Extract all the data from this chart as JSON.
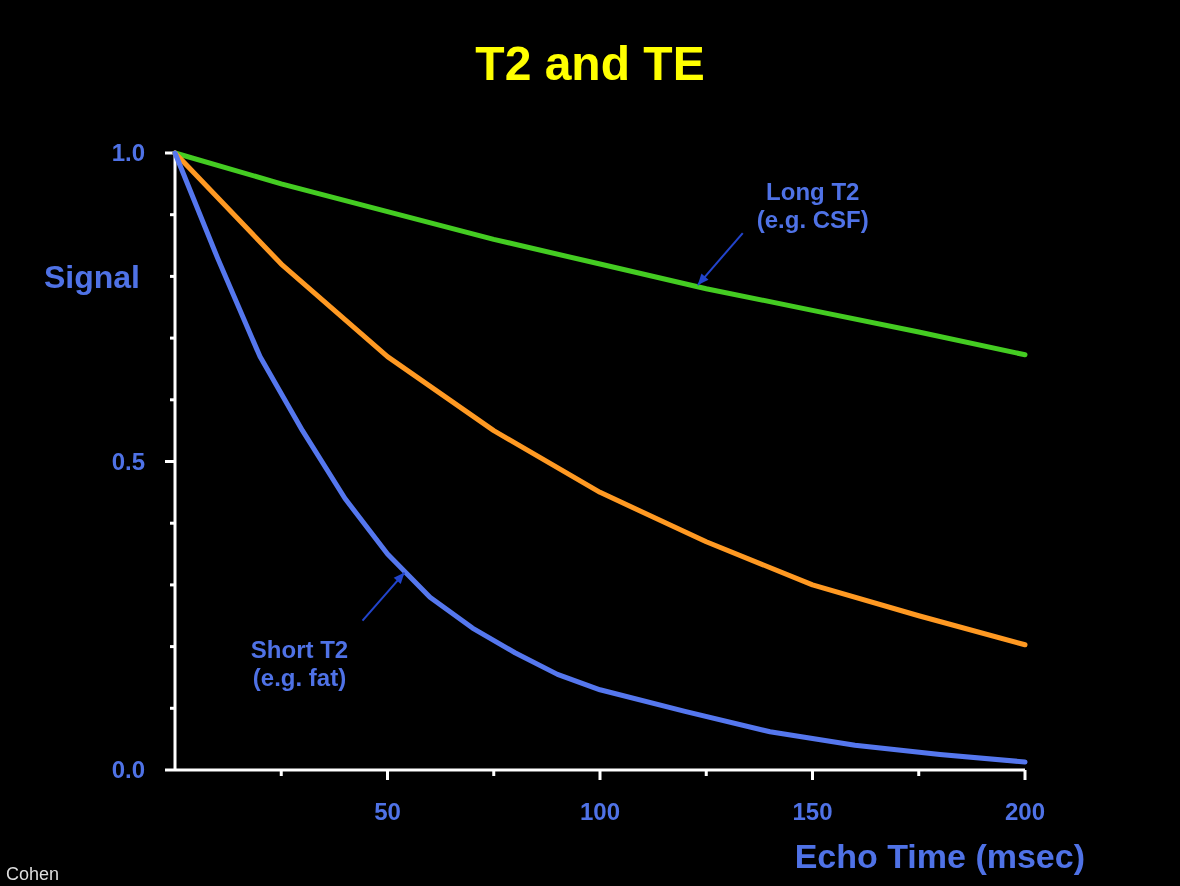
{
  "chart_data": {
    "type": "line",
    "title": "T2 and TE",
    "xlabel": "Echo Time (msec)",
    "ylabel": "Signal",
    "xlim": [
      0,
      200
    ],
    "ylim": [
      0,
      1
    ],
    "xticks": [
      {
        "value": 25,
        "label": null
      },
      50,
      {
        "value": 75,
        "label": null
      },
      100,
      {
        "value": 125,
        "label": null
      },
      150,
      {
        "value": 175,
        "label": null
      },
      200
    ],
    "yticks": [
      {
        "value": 0,
        "label": "0.0"
      },
      {
        "value": 0.1,
        "label": null
      },
      {
        "value": 0.2,
        "label": null
      },
      {
        "value": 0.3,
        "label": null
      },
      {
        "value": 0.4,
        "label": null
      },
      {
        "value": 0.5,
        "label": "0.5"
      },
      {
        "value": 0.6,
        "label": null
      },
      {
        "value": 0.7,
        "label": null
      },
      {
        "value": 0.8,
        "label": null
      },
      {
        "value": 0.9,
        "label": null
      },
      {
        "value": 1,
        "label": "1.0"
      }
    ],
    "grid": false,
    "marker": "none",
    "line_style": "solid",
    "series": [
      {
        "color": "#44cc22",
        "x": [
          0,
          25,
          50,
          75,
          100,
          125,
          150,
          175,
          200
        ],
        "values": [
          1.0,
          0.95,
          0.905,
          0.86,
          0.82,
          0.78,
          0.745,
          0.71,
          0.673
        ]
      },
      {
        "color": "#ff9922",
        "x": [
          0,
          25,
          50,
          75,
          100,
          125,
          150,
          175,
          200
        ],
        "values": [
          1.0,
          0.82,
          0.67,
          0.55,
          0.45,
          0.37,
          0.3,
          0.25,
          0.203
        ]
      },
      {
        "color": "#5577ee",
        "x": [
          0,
          10,
          20,
          30,
          40,
          50,
          60,
          70,
          80,
          90,
          100,
          120,
          140,
          160,
          180,
          200
        ],
        "values": [
          1.0,
          0.83,
          0.67,
          0.55,
          0.44,
          0.35,
          0.28,
          0.23,
          0.19,
          0.155,
          0.13,
          0.095,
          0.062,
          0.04,
          0.025,
          0.013
        ]
      }
    ],
    "annotations": [
      {
        "text": "Long T2\n(e.g. CSF)",
        "x": 123,
        "y": 0.786
      },
      {
        "text": "Short T2\n(e.g. fat)",
        "x": 54,
        "y": 0.32
      },
      "Cohen"
    ]
  }
}
